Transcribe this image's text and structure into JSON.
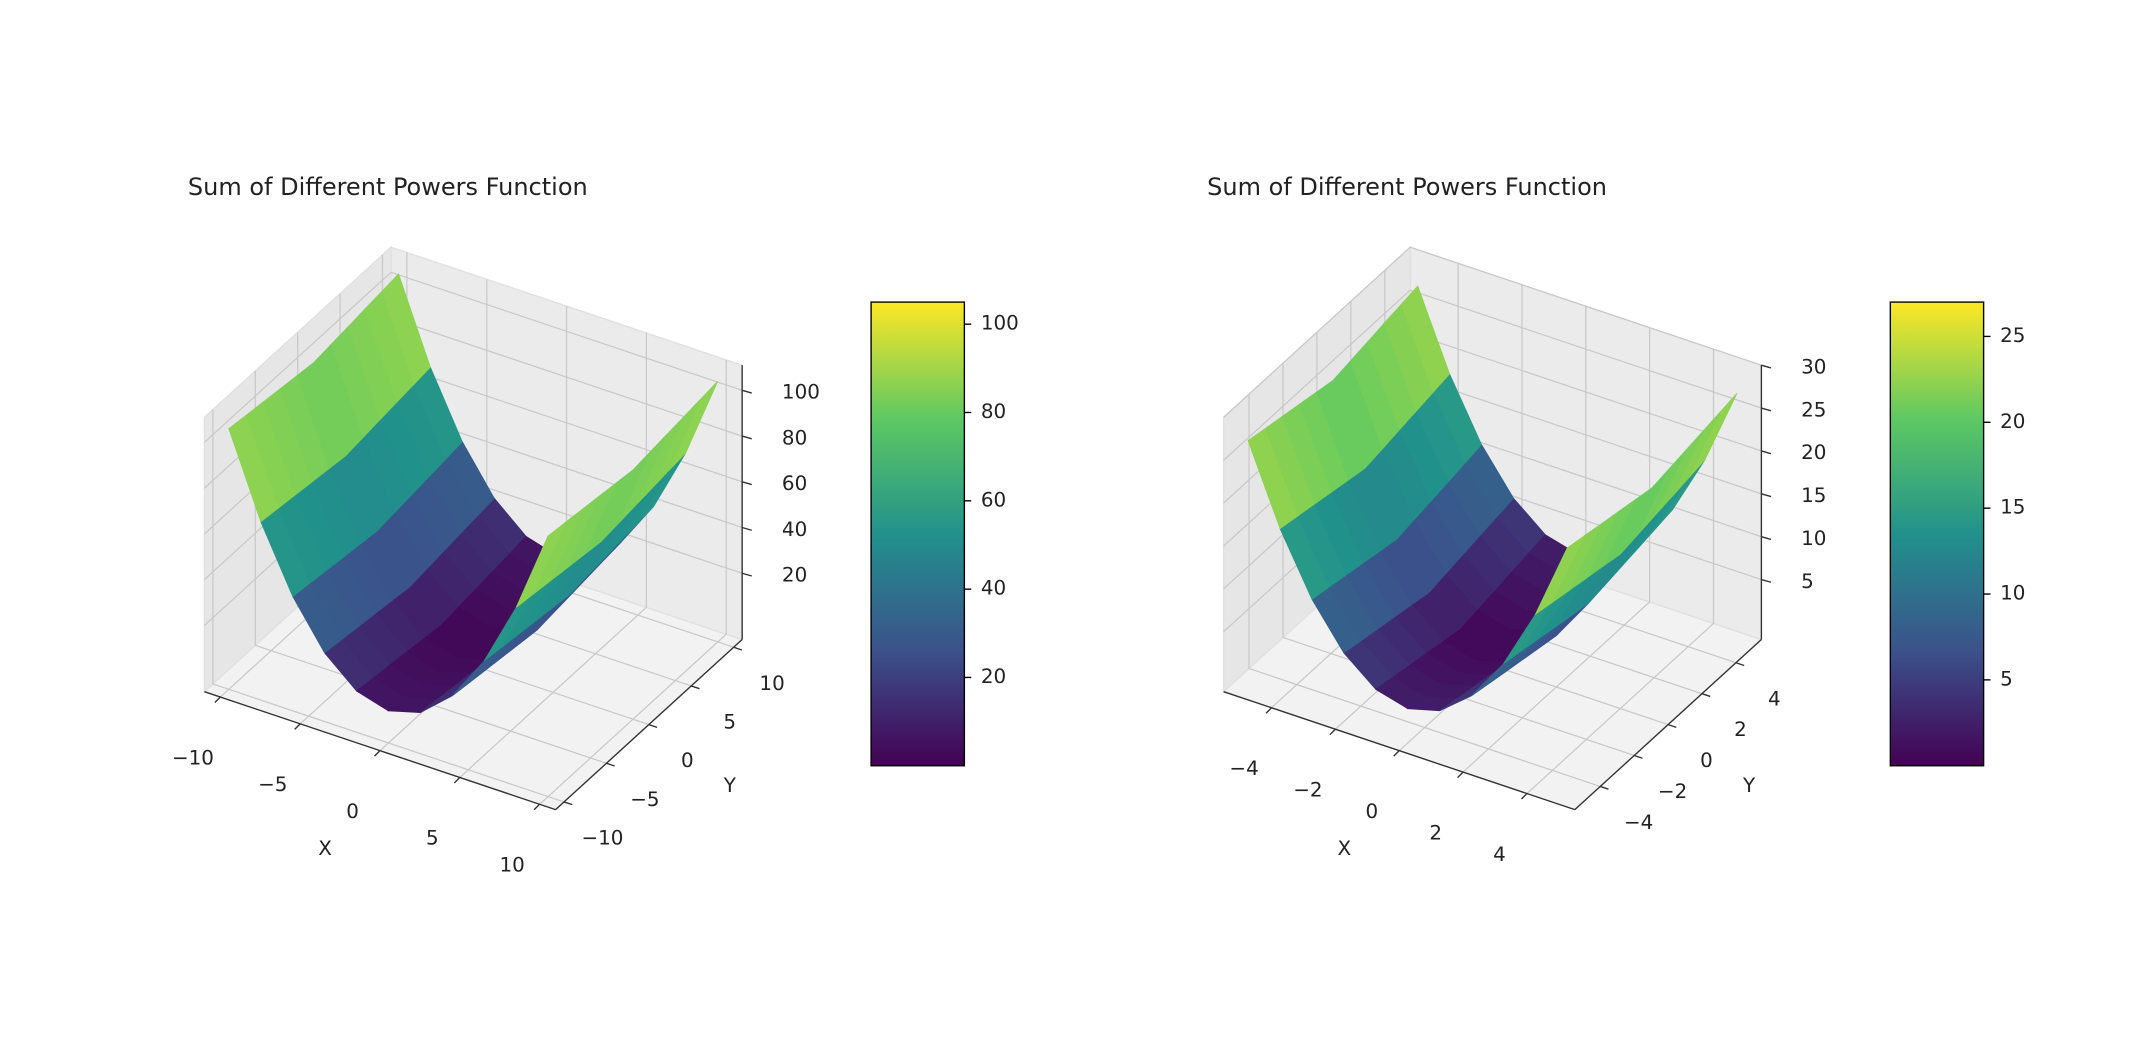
{
  "chart_data": [
    {
      "type": "surface3d",
      "title": "Sum of Different Powers Function",
      "x_label": "X",
      "y_label": "Y",
      "colormap": "viridis",
      "x": [
        -10,
        -8,
        -6,
        -4,
        -2,
        0,
        2,
        4,
        6,
        8,
        10
      ],
      "y": [
        -10,
        -8,
        -6,
        -4,
        -2,
        0,
        2,
        4,
        6,
        8,
        10
      ],
      "z": [
        [
          105,
          69,
          41,
          21,
          9,
          5,
          9,
          21,
          41,
          69,
          105
        ],
        [
          104,
          68,
          40,
          20,
          8,
          4,
          8,
          20,
          40,
          68,
          104
        ],
        [
          103,
          67,
          39,
          19,
          7,
          3,
          7,
          19,
          39,
          67,
          103
        ],
        [
          102,
          66,
          38,
          18,
          6,
          2,
          6,
          18,
          38,
          66,
          102
        ],
        [
          101,
          65,
          37,
          17,
          5,
          1,
          5,
          17,
          37,
          65,
          101
        ],
        [
          100,
          64,
          36,
          16,
          4,
          0,
          4,
          16,
          36,
          64,
          100
        ],
        [
          101,
          65,
          37,
          17,
          5,
          1,
          5,
          17,
          37,
          65,
          101
        ],
        [
          102,
          66,
          38,
          18,
          6,
          2,
          6,
          18,
          38,
          66,
          102
        ],
        [
          103,
          67,
          39,
          19,
          7,
          3,
          7,
          19,
          39,
          67,
          103
        ],
        [
          104,
          68,
          40,
          20,
          8,
          4,
          8,
          20,
          40,
          68,
          104
        ],
        [
          105,
          69,
          41,
          21,
          9,
          5,
          9,
          21,
          41,
          69,
          105
        ]
      ],
      "xlim": [
        -11,
        11
      ],
      "ylim": [
        -11,
        11
      ],
      "zlim": [
        -9,
        111
      ],
      "xticks": [
        {
          "value": -10,
          "label": "−10"
        },
        {
          "value": -5,
          "label": "−5"
        },
        0,
        5,
        10
      ],
      "yticks": [
        {
          "value": -10,
          "label": "−10"
        },
        {
          "value": -5,
          "label": "−5"
        },
        0,
        5,
        10
      ],
      "zticks": [
        20,
        40,
        60,
        80,
        100
      ],
      "colorbar": {
        "lim": [
          0,
          105
        ],
        "ticks": [
          20,
          40,
          60,
          80,
          100
        ]
      }
    },
    {
      "type": "surface3d",
      "title": "Sum of Different Powers Function",
      "x_label": "X",
      "y_label": "Y",
      "colormap": "viridis",
      "x": [
        -5,
        -4,
        -3,
        -2,
        -1,
        0,
        1,
        2,
        3,
        4,
        5
      ],
      "y": [
        -5,
        -4,
        -3,
        -2,
        -1,
        0,
        1,
        2,
        3,
        4,
        5
      ],
      "z": [
        [
          27,
          18,
          11,
          6,
          3,
          2,
          3,
          6,
          11,
          18,
          27
        ],
        [
          26.6,
          17.6,
          10.6,
          5.6,
          2.6,
          1.6,
          2.6,
          5.6,
          10.6,
          17.6,
          26.6
        ],
        [
          26.2,
          17.2,
          10.2,
          5.2,
          2.2,
          1.2,
          2.2,
          5.2,
          10.2,
          17.2,
          26.2
        ],
        [
          25.8,
          16.8,
          9.8,
          4.8,
          1.8,
          0.8,
          1.8,
          4.8,
          9.8,
          16.8,
          25.8
        ],
        [
          25.4,
          16.4,
          9.4,
          4.4,
          1.4,
          0.4,
          1.4,
          4.4,
          9.4,
          16.4,
          25.4
        ],
        [
          25,
          16,
          9,
          4,
          1,
          0,
          1,
          4,
          9,
          16,
          25
        ],
        [
          25.4,
          16.4,
          9.4,
          4.4,
          1.4,
          0.4,
          1.4,
          4.4,
          9.4,
          16.4,
          25.4
        ],
        [
          25.8,
          16.8,
          9.8,
          4.8,
          1.8,
          0.8,
          1.8,
          4.8,
          9.8,
          16.8,
          25.8
        ],
        [
          26.2,
          17.2,
          10.2,
          5.2,
          2.2,
          1.2,
          2.2,
          5.2,
          10.2,
          17.2,
          26.2
        ],
        [
          26.6,
          17.6,
          10.6,
          5.6,
          2.6,
          1.6,
          2.6,
          5.6,
          10.6,
          17.6,
          26.6
        ],
        [
          27,
          18,
          11,
          6,
          3,
          2,
          3,
          6,
          11,
          18,
          27
        ]
      ],
      "xlim": [
        -5.5,
        5.5
      ],
      "ylim": [
        -5.5,
        5.5
      ],
      "zlim": [
        -2,
        30
      ],
      "xticks": [
        {
          "value": -4,
          "label": "−4"
        },
        {
          "value": -2,
          "label": "−2"
        },
        0,
        2,
        4
      ],
      "yticks": [
        {
          "value": -4,
          "label": "−4"
        },
        {
          "value": -2,
          "label": "−2"
        },
        0,
        2,
        4
      ],
      "zticks": [
        5,
        10,
        15,
        20,
        25,
        30
      ],
      "colorbar": {
        "lim": [
          0,
          27
        ],
        "ticks": [
          5,
          10,
          15,
          20,
          25
        ]
      }
    }
  ]
}
